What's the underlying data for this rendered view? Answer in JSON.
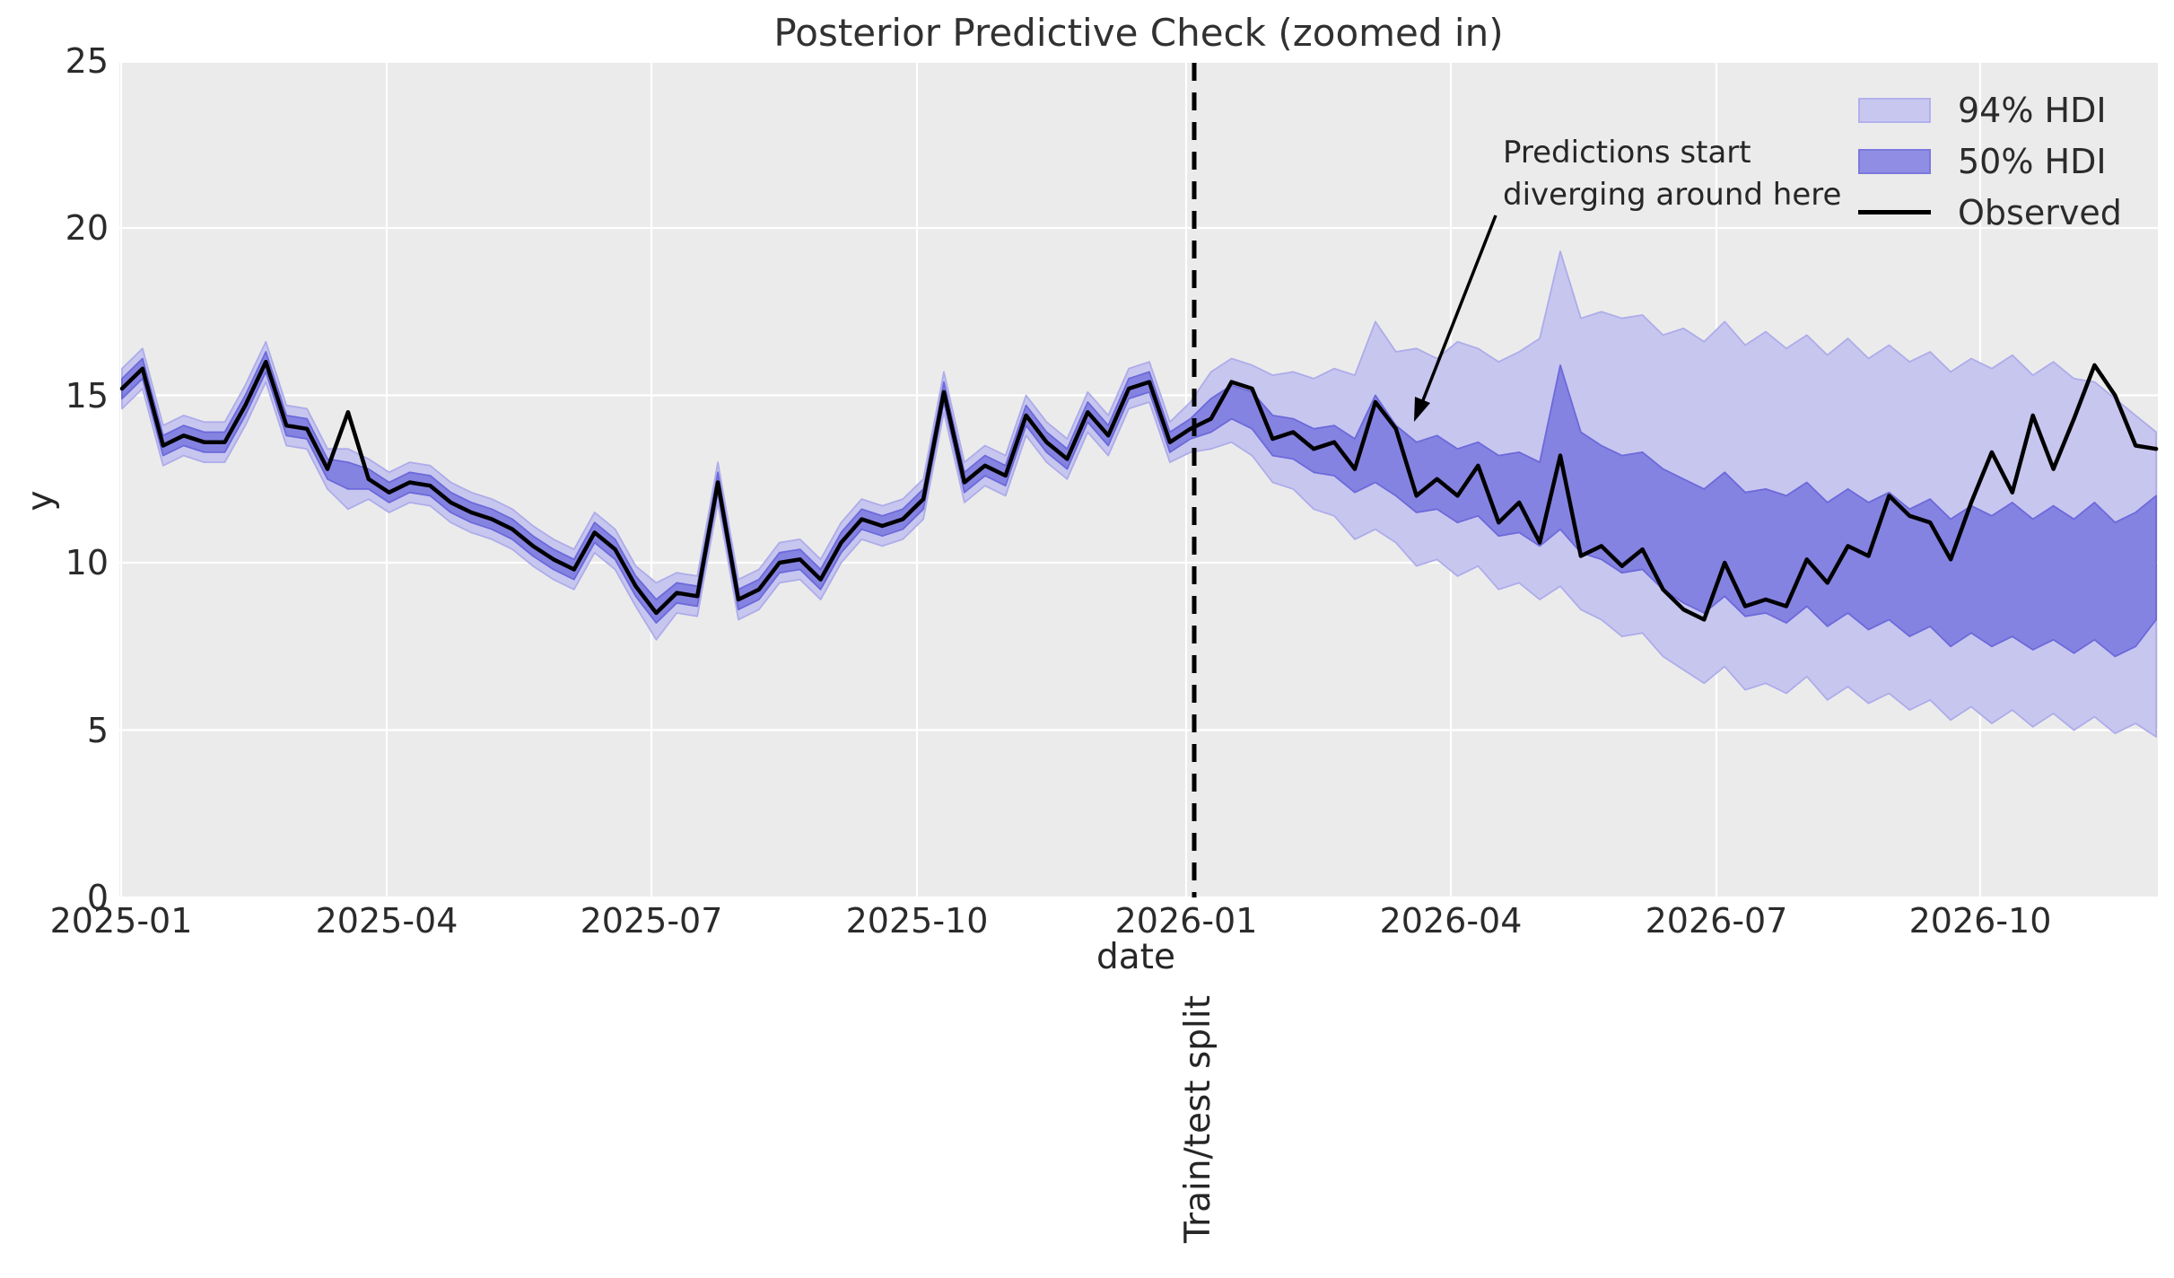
{
  "figure": {
    "title": "Posterior Predictive Check (zoomed in)",
    "xlabel": "date",
    "ylabel": "y",
    "split_label": "Train/test split",
    "annotation": "Predictions start\ndiverging around here"
  },
  "legend": {
    "items": [
      {
        "label": "94% HDI",
        "type": "patch",
        "fill": "#c8c7f0",
        "edge": "#b3b1ec"
      },
      {
        "label": "50% HDI",
        "type": "patch",
        "fill": "#908ee4",
        "edge": "#7b78de"
      },
      {
        "label": "Observed",
        "type": "line",
        "fill": "#000000",
        "edge": "#000000"
      }
    ]
  },
  "colors": {
    "plot_bg": "#ebebeb",
    "grid": "#ffffff",
    "hdi94_fill": "#c7c6ef",
    "hdi94_edge": "#aeace9",
    "hdi50_fill": "#8583e1",
    "hdi50_edge": "#6c69da",
    "observed": "#000000",
    "split_line": "#000000",
    "text": "#262626"
  },
  "chart_data": {
    "type": "line",
    "title": "Posterior Predictive Check (zoomed in)",
    "xlabel": "date",
    "ylabel": "y",
    "ylim": [
      0,
      25
    ],
    "grid": true,
    "legend_position": "upper right",
    "x_tick_labels": [
      "2025-01",
      "2025-04",
      "2025-07",
      "2025-10",
      "2026-01",
      "2026-04",
      "2026-07",
      "2026-10"
    ],
    "y_tick_labels": [
      0,
      5,
      10,
      15,
      20,
      25
    ],
    "split_date": "2026-01-04",
    "dates": [
      "2025-01-05",
      "2025-01-12",
      "2025-01-19",
      "2025-01-26",
      "2025-02-02",
      "2025-02-09",
      "2025-02-16",
      "2025-02-23",
      "2025-03-02",
      "2025-03-09",
      "2025-03-16",
      "2025-03-23",
      "2025-03-30",
      "2025-04-06",
      "2025-04-13",
      "2025-04-20",
      "2025-04-27",
      "2025-05-04",
      "2025-05-11",
      "2025-05-18",
      "2025-05-25",
      "2025-06-01",
      "2025-06-08",
      "2025-06-15",
      "2025-06-22",
      "2025-06-29",
      "2025-07-06",
      "2025-07-13",
      "2025-07-20",
      "2025-07-27",
      "2025-08-03",
      "2025-08-10",
      "2025-08-17",
      "2025-08-24",
      "2025-08-31",
      "2025-09-07",
      "2025-09-14",
      "2025-09-21",
      "2025-09-28",
      "2025-10-05",
      "2025-10-12",
      "2025-10-19",
      "2025-10-26",
      "2025-11-02",
      "2025-11-09",
      "2025-11-16",
      "2025-11-23",
      "2025-11-30",
      "2025-12-07",
      "2025-12-14",
      "2025-12-21",
      "2025-12-28",
      "2026-01-04",
      "2026-01-11",
      "2026-01-18",
      "2026-01-25",
      "2026-02-01",
      "2026-02-08",
      "2026-02-15",
      "2026-02-22",
      "2026-03-01",
      "2026-03-08",
      "2026-03-15",
      "2026-03-22",
      "2026-03-29",
      "2026-04-05",
      "2026-04-12",
      "2026-04-19",
      "2026-04-26",
      "2026-05-03",
      "2026-05-10",
      "2026-05-17",
      "2026-05-24",
      "2026-05-31",
      "2026-06-07",
      "2026-06-14",
      "2026-06-21",
      "2026-06-28",
      "2026-07-05",
      "2026-07-12",
      "2026-07-19",
      "2026-07-26",
      "2026-08-02",
      "2026-08-09",
      "2026-08-16",
      "2026-08-23",
      "2026-08-30",
      "2026-09-06",
      "2026-09-13",
      "2026-09-20",
      "2026-09-27",
      "2026-10-04",
      "2026-10-11",
      "2026-10-18",
      "2026-10-25",
      "2026-11-01",
      "2026-11-08",
      "2026-11-15",
      "2026-11-22",
      "2026-11-29"
    ],
    "observed": [
      15.2,
      15.8,
      13.5,
      13.8,
      13.6,
      13.6,
      14.7,
      16.0,
      14.1,
      14.0,
      12.8,
      14.5,
      12.5,
      12.1,
      12.4,
      12.3,
      11.8,
      11.5,
      11.3,
      11.0,
      10.5,
      10.1,
      9.8,
      10.9,
      10.4,
      9.3,
      8.5,
      9.1,
      9.0,
      12.4,
      8.9,
      9.2,
      10.0,
      10.1,
      9.5,
      10.6,
      11.3,
      11.1,
      11.3,
      11.9,
      15.1,
      12.4,
      12.9,
      12.6,
      14.4,
      13.6,
      13.1,
      14.5,
      13.8,
      15.2,
      15.4,
      13.6,
      14.0,
      14.3,
      15.4,
      15.2,
      13.7,
      13.9,
      13.4,
      13.6,
      12.8,
      14.8,
      14.0,
      12.0,
      12.5,
      12.0,
      12.9,
      11.2,
      11.8,
      10.6,
      13.2,
      10.2,
      10.5,
      9.9,
      10.4,
      9.2,
      8.6,
      8.3,
      10.0,
      8.7,
      8.9,
      8.7,
      10.1,
      9.4,
      10.5,
      10.2,
      12.0,
      11.4,
      11.2,
      10.1,
      11.8,
      13.3,
      12.1,
      14.4,
      12.8,
      14.3,
      15.9,
      15.0,
      13.5,
      13.4
    ],
    "hdi94_upper": [
      15.8,
      16.4,
      14.1,
      14.4,
      14.2,
      14.2,
      15.3,
      16.6,
      14.7,
      14.6,
      13.4,
      13.4,
      13.1,
      12.7,
      13.0,
      12.9,
      12.4,
      12.1,
      11.9,
      11.6,
      11.1,
      10.7,
      10.4,
      11.5,
      11.0,
      9.9,
      9.4,
      9.7,
      9.6,
      13.0,
      9.5,
      9.8,
      10.6,
      10.7,
      10.1,
      11.2,
      11.9,
      11.7,
      11.9,
      12.5,
      15.7,
      13.0,
      13.5,
      13.2,
      15.0,
      14.2,
      13.7,
      15.1,
      14.4,
      15.8,
      16.0,
      14.2,
      14.8,
      15.7,
      16.1,
      15.9,
      15.6,
      15.7,
      15.5,
      15.8,
      15.6,
      17.2,
      16.3,
      16.4,
      16.1,
      16.6,
      16.4,
      16.0,
      16.3,
      16.7,
      19.3,
      17.3,
      17.5,
      17.3,
      17.4,
      16.8,
      17.0,
      16.6,
      17.2,
      16.5,
      16.9,
      16.4,
      16.8,
      16.2,
      16.7,
      16.1,
      16.5,
      16.0,
      16.3,
      15.7,
      16.1,
      15.8,
      16.2,
      15.6,
      16.0,
      15.5,
      15.4,
      14.9,
      14.4,
      13.9
    ],
    "hdi94_lower": [
      14.6,
      15.2,
      12.9,
      13.2,
      13.0,
      13.0,
      14.1,
      15.4,
      13.5,
      13.4,
      12.2,
      11.6,
      11.9,
      11.5,
      11.8,
      11.7,
      11.2,
      10.9,
      10.7,
      10.4,
      9.9,
      9.5,
      9.2,
      10.3,
      9.8,
      8.7,
      7.7,
      8.5,
      8.4,
      11.8,
      8.3,
      8.6,
      9.4,
      9.5,
      8.9,
      10.0,
      10.7,
      10.5,
      10.7,
      11.3,
      14.5,
      11.8,
      12.3,
      12.0,
      13.8,
      13.0,
      12.5,
      13.9,
      13.2,
      14.6,
      14.8,
      13.0,
      13.3,
      13.4,
      13.6,
      13.2,
      12.4,
      12.2,
      11.6,
      11.4,
      10.7,
      11.0,
      10.6,
      9.9,
      10.1,
      9.6,
      9.9,
      9.2,
      9.4,
      8.9,
      9.3,
      8.6,
      8.3,
      7.8,
      7.9,
      7.2,
      6.8,
      6.4,
      6.9,
      6.2,
      6.4,
      6.1,
      6.6,
      5.9,
      6.3,
      5.8,
      6.1,
      5.6,
      5.9,
      5.3,
      5.7,
      5.2,
      5.6,
      5.1,
      5.5,
      5.0,
      5.4,
      4.9,
      5.2,
      4.8
    ],
    "hdi50_upper": [
      15.5,
      16.1,
      13.8,
      14.1,
      13.9,
      13.9,
      15.0,
      16.3,
      14.4,
      14.3,
      13.1,
      13.0,
      12.8,
      12.4,
      12.7,
      12.6,
      12.1,
      11.8,
      11.6,
      11.3,
      10.8,
      10.4,
      10.1,
      11.2,
      10.7,
      9.6,
      8.9,
      9.4,
      9.3,
      12.7,
      9.2,
      9.5,
      10.3,
      10.4,
      9.8,
      10.9,
      11.6,
      11.4,
      11.6,
      12.2,
      15.4,
      12.7,
      13.2,
      12.9,
      14.7,
      13.9,
      13.4,
      14.8,
      14.1,
      15.5,
      15.7,
      13.9,
      14.3,
      14.9,
      15.3,
      15.1,
      14.4,
      14.3,
      14.0,
      14.1,
      13.7,
      15.0,
      14.1,
      13.6,
      13.8,
      13.4,
      13.6,
      13.2,
      13.3,
      13.0,
      15.9,
      13.9,
      13.5,
      13.2,
      13.3,
      12.8,
      12.5,
      12.2,
      12.7,
      12.1,
      12.2,
      12.0,
      12.4,
      11.8,
      12.2,
      11.8,
      12.1,
      11.6,
      11.9,
      11.3,
      11.7,
      11.4,
      11.8,
      11.3,
      11.7,
      11.3,
      11.8,
      11.2,
      11.5,
      12.0
    ],
    "hdi50_lower": [
      14.9,
      15.5,
      13.2,
      13.5,
      13.3,
      13.3,
      14.4,
      15.7,
      13.8,
      13.7,
      12.5,
      12.2,
      12.2,
      11.8,
      12.1,
      12.0,
      11.5,
      11.2,
      11.0,
      10.7,
      10.2,
      9.8,
      9.5,
      10.6,
      10.1,
      9.0,
      8.2,
      8.8,
      8.7,
      12.1,
      8.6,
      8.9,
      9.7,
      9.8,
      9.2,
      10.3,
      11.0,
      10.8,
      11.0,
      11.6,
      14.8,
      12.1,
      12.6,
      12.3,
      14.1,
      13.3,
      12.8,
      14.2,
      13.5,
      14.9,
      15.1,
      13.3,
      13.7,
      13.9,
      14.3,
      14.0,
      13.2,
      13.1,
      12.7,
      12.6,
      12.1,
      12.4,
      12.0,
      11.5,
      11.6,
      11.2,
      11.4,
      10.8,
      10.9,
      10.5,
      11.0,
      10.3,
      10.1,
      9.7,
      9.8,
      9.2,
      8.8,
      8.5,
      9.0,
      8.4,
      8.5,
      8.2,
      8.7,
      8.1,
      8.5,
      8.0,
      8.3,
      7.8,
      8.1,
      7.5,
      7.9,
      7.5,
      7.8,
      7.4,
      7.7,
      7.3,
      7.7,
      7.2,
      7.5,
      8.3
    ]
  }
}
